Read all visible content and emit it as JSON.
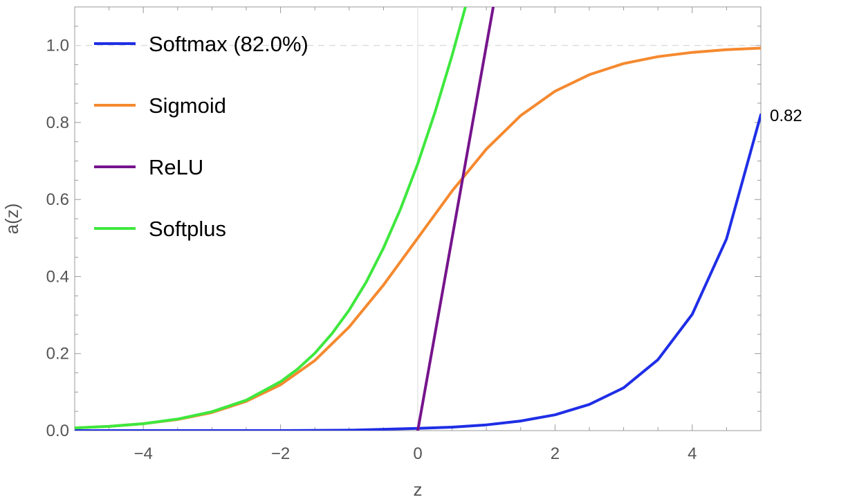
{
  "chart_data": {
    "type": "line",
    "xlabel": "z",
    "ylabel": "a(z)",
    "xlim": [
      -5,
      5
    ],
    "ylim": [
      0,
      1.1
    ],
    "x_ticks": [
      -4,
      -2,
      0,
      2,
      4
    ],
    "x_tick_labels": [
      "−4",
      "−2",
      "0",
      "2",
      "4"
    ],
    "y_ticks": [
      0.0,
      0.2,
      0.4,
      0.6,
      0.8,
      1.0
    ],
    "y_tick_labels": [
      "0.0",
      "0.2",
      "0.4",
      "0.6",
      "0.8",
      "1.0"
    ],
    "reference_line_y": 1.0,
    "legend_position": "top-left",
    "end_annotation": {
      "text": "0.82",
      "x": 5,
      "y": 0.82
    },
    "series": [
      {
        "name": "Softmax (82.0%)",
        "color": "#1f2ee6",
        "x": [
          -5,
          -4,
          -3,
          -2,
          -1,
          0,
          0.5,
          1,
          1.5,
          2,
          2.5,
          3,
          3.5,
          4,
          4.5,
          5
        ],
        "y": [
          0.0,
          0.0,
          0.0,
          0.0,
          0.001,
          0.006,
          0.009,
          0.015,
          0.025,
          0.041,
          0.068,
          0.111,
          0.184,
          0.302,
          0.498,
          0.82
        ]
      },
      {
        "name": "Sigmoid",
        "color": "#f5892f",
        "x": [
          -5,
          -4.5,
          -4,
          -3.5,
          -3,
          -2.5,
          -2,
          -1.5,
          -1,
          -0.5,
          0,
          0.5,
          1,
          1.5,
          2,
          2.5,
          3,
          3.5,
          4,
          4.5,
          5
        ],
        "y": [
          0.007,
          0.011,
          0.018,
          0.029,
          0.047,
          0.076,
          0.119,
          0.182,
          0.269,
          0.378,
          0.5,
          0.622,
          0.731,
          0.818,
          0.881,
          0.924,
          0.953,
          0.971,
          0.982,
          0.989,
          0.993
        ]
      },
      {
        "name": "ReLU",
        "color": "#76148c",
        "x": [
          0,
          1.1
        ],
        "y": [
          0,
          1.1
        ]
      },
      {
        "name": "Softplus",
        "color": "#3ee83e",
        "x": [
          -5,
          -4.5,
          -4,
          -3.5,
          -3,
          -2.5,
          -2,
          -1.75,
          -1.5,
          -1.25,
          -1,
          -0.75,
          -0.5,
          -0.25,
          0,
          0.25,
          0.5,
          0.7
        ],
        "y": [
          0.007,
          0.011,
          0.018,
          0.03,
          0.049,
          0.079,
          0.127,
          0.16,
          0.201,
          0.252,
          0.313,
          0.386,
          0.474,
          0.576,
          0.693,
          0.826,
          0.974,
          1.103
        ]
      }
    ]
  }
}
